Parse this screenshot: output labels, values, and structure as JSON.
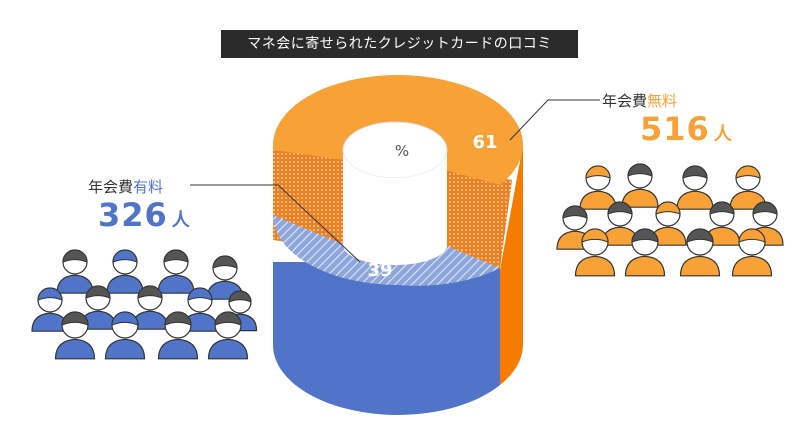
{
  "title": "マネ会に寄せられたクレジットカードの口コミ",
  "chart_data": {
    "type": "pie",
    "unit_label": "%",
    "slices": [
      {
        "name_prefix": "年会費",
        "name_suffix": "無料",
        "value": 61,
        "count": "516",
        "count_unit": "人"
      },
      {
        "name_prefix": "年会費",
        "name_suffix": "有料",
        "value": 39,
        "count": "326",
        "count_unit": "人"
      }
    ],
    "colors": {
      "free": "#f7a136",
      "free_side": "#f57c00",
      "paid": "#4f74c8",
      "paid_top": "#8ea6dc",
      "dotted": "#ee7f1e"
    }
  }
}
